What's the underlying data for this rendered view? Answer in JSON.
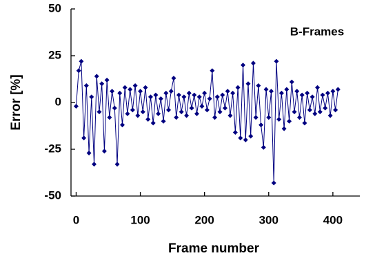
{
  "chart_data": {
    "type": "line",
    "annotation": "B-Frames",
    "xlabel": "Frame number",
    "ylabel": "Error [%]",
    "color": "#000080",
    "marker": "diamond",
    "x": [
      0,
      4,
      8,
      12,
      16,
      20,
      24,
      28,
      32,
      36,
      40,
      44,
      48,
      52,
      56,
      60,
      64,
      68,
      72,
      76,
      80,
      84,
      88,
      92,
      96,
      100,
      104,
      108,
      112,
      116,
      120,
      124,
      128,
      132,
      136,
      140,
      144,
      148,
      152,
      156,
      160,
      164,
      168,
      172,
      176,
      180,
      184,
      188,
      192,
      196,
      200,
      204,
      208,
      212,
      216,
      220,
      224,
      228,
      232,
      236,
      240,
      244,
      248,
      252,
      256,
      260,
      264,
      268,
      272,
      276,
      280,
      284,
      288,
      292,
      296,
      300,
      304,
      308,
      312,
      316,
      320,
      324,
      328,
      332,
      336,
      340,
      344,
      348,
      352,
      356,
      360,
      364,
      368,
      372,
      376,
      380,
      384,
      388,
      392,
      396,
      400,
      404,
      408
    ],
    "values": [
      -2,
      17,
      22,
      -19,
      9,
      -27,
      3,
      -33,
      14,
      -5,
      10,
      -26,
      12,
      -8,
      6,
      -3,
      -33,
      5,
      -12,
      8,
      -6,
      7,
      -4,
      9,
      -7,
      6,
      -5,
      8,
      -9,
      3,
      -11,
      4,
      -6,
      2,
      -10,
      5,
      -4,
      6,
      13,
      -8,
      4,
      -5,
      3,
      -7,
      5,
      -3,
      4,
      -6,
      3,
      -2,
      5,
      -4,
      2,
      17,
      -8,
      3,
      -5,
      4,
      -3,
      6,
      -7,
      5,
      -16,
      8,
      -19,
      20,
      -20,
      10,
      -18,
      21,
      -8,
      9,
      -12,
      -24,
      7,
      -8,
      6,
      -43,
      22,
      -9,
      5,
      -14,
      7,
      -10,
      11,
      -5,
      6,
      -8,
      4,
      -11,
      5,
      -4,
      3,
      -6,
      8,
      -5,
      4,
      -3,
      5,
      -7,
      6,
      -4,
      7
    ],
    "xlim": [
      -8,
      442
    ],
    "xticks": [
      0,
      100,
      200,
      300,
      400
    ],
    "ylim": [
      -50,
      50
    ],
    "yticks": [
      -50,
      -25,
      0,
      25,
      50
    ]
  }
}
